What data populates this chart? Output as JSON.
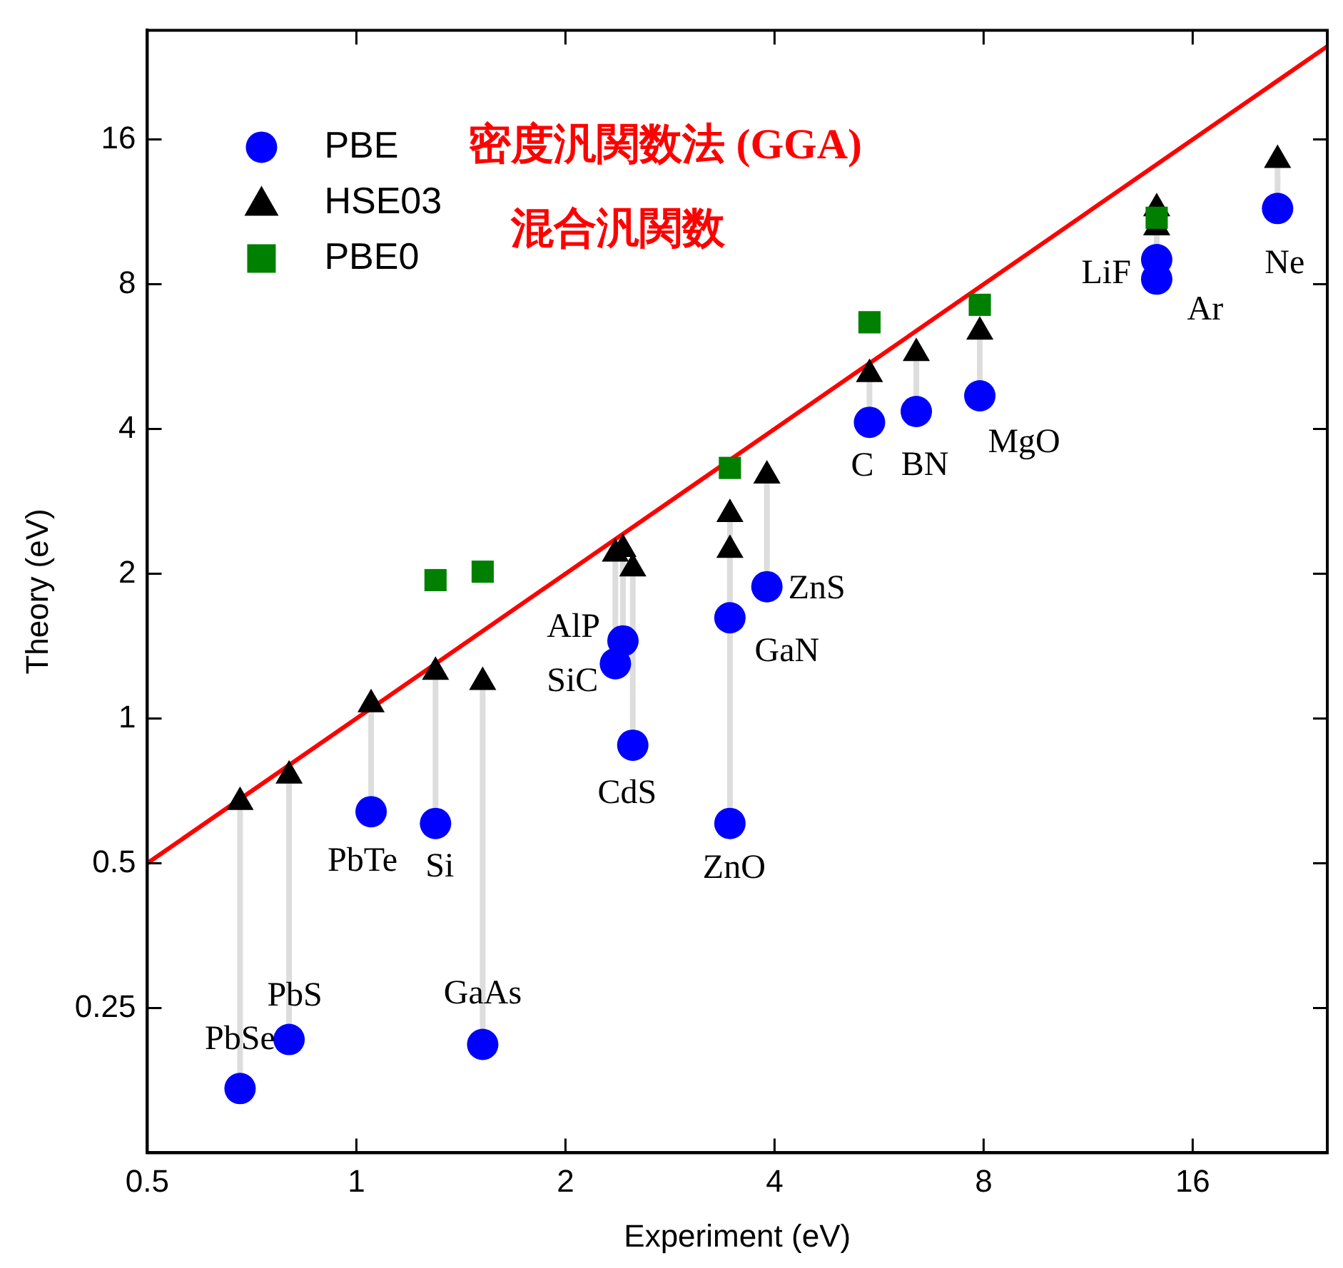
{
  "chart_data": {
    "type": "scatter",
    "xlabel": "Experiment (eV)",
    "ylabel": "Theory (eV)",
    "log": "xy",
    "xlim": [
      0.5,
      25
    ],
    "ylim": [
      0.125,
      27
    ],
    "xticks": [
      0.5,
      1,
      2,
      4,
      8,
      16
    ],
    "yticks": [
      0.25,
      0.5,
      1,
      2,
      4,
      8,
      16
    ],
    "grid": false,
    "legend": "top left",
    "series": [
      {
        "name": "PBE",
        "marker": "circle",
        "color": "#0000ff",
        "x": [
          0.68,
          0.8,
          1.05,
          1.3,
          1.52,
          2.36,
          2.42,
          2.5,
          3.45,
          3.45,
          3.9,
          5.48,
          6.4,
          7.9,
          14.2,
          14.2,
          21.2
        ],
        "values": [
          0.17,
          0.215,
          0.64,
          0.605,
          0.21,
          1.3,
          1.45,
          0.88,
          1.62,
          0.605,
          1.88,
          4.13,
          4.35,
          4.69,
          8.2,
          9.0,
          11.5
        ]
      },
      {
        "name": "HSE03",
        "marker": "triangle",
        "color": "#000000",
        "x": [
          0.68,
          0.8,
          1.05,
          1.3,
          1.52,
          2.36,
          2.42,
          2.5,
          3.45,
          3.45,
          3.9,
          5.48,
          6.4,
          7.9,
          14.2,
          14.2,
          21.2
        ],
        "values": [
          0.67,
          0.76,
          1.07,
          1.25,
          1.19,
          2.2,
          2.25,
          2.05,
          2.24,
          2.66,
          3.2,
          5.2,
          5.75,
          6.37,
          10.5,
          11.5,
          14.5
        ]
      },
      {
        "name": "PBE0",
        "marker": "square",
        "color": "#008000",
        "x": [
          1.3,
          1.52,
          3.45,
          5.48,
          7.9,
          14.2
        ],
        "values": [
          1.94,
          2.02,
          3.32,
          6.67,
          7.25,
          11.0
        ]
      },
      {
        "type": "line",
        "marker": "none",
        "line_style": "solid",
        "color": "#ff0000",
        "x": [
          0.5,
          25
        ],
        "values": [
          0.5,
          25
        ]
      }
    ],
    "annotations": [
      "密度汎関数法 (GGA)",
      "混合汎関数",
      {
        "text": "PbSe",
        "x": 0.68,
        "y": 0.17
      },
      {
        "text": "PbS",
        "x": 0.8,
        "y": 0.215
      },
      {
        "text": "PbTe",
        "x": 1.05,
        "y": 0.64
      },
      {
        "text": "Si",
        "x": 1.3,
        "y": 0.605
      },
      {
        "text": "GaAs",
        "x": 1.52,
        "y": 0.21
      },
      {
        "text": "SiC",
        "x": 2.36,
        "y": 1.3
      },
      {
        "text": "AlP",
        "x": 2.42,
        "y": 1.45
      },
      {
        "text": "CdS",
        "x": 2.5,
        "y": 0.88
      },
      {
        "text": "GaN",
        "x": 3.45,
        "y": 1.62
      },
      {
        "text": "ZnO",
        "x": 3.45,
        "y": 0.605
      },
      {
        "text": "ZnS",
        "x": 3.9,
        "y": 1.88
      },
      {
        "text": "C",
        "x": 5.48,
        "y": 4.13
      },
      {
        "text": "BN",
        "x": 6.4,
        "y": 4.35
      },
      {
        "text": "MgO",
        "x": 7.9,
        "y": 4.69
      },
      {
        "text": "Ar",
        "x": 14.2,
        "y": 8.2
      },
      {
        "text": "LiF",
        "x": 14.2,
        "y": 9.0
      },
      {
        "text": "Ne",
        "x": 21.2,
        "y": 11.5
      }
    ]
  }
}
